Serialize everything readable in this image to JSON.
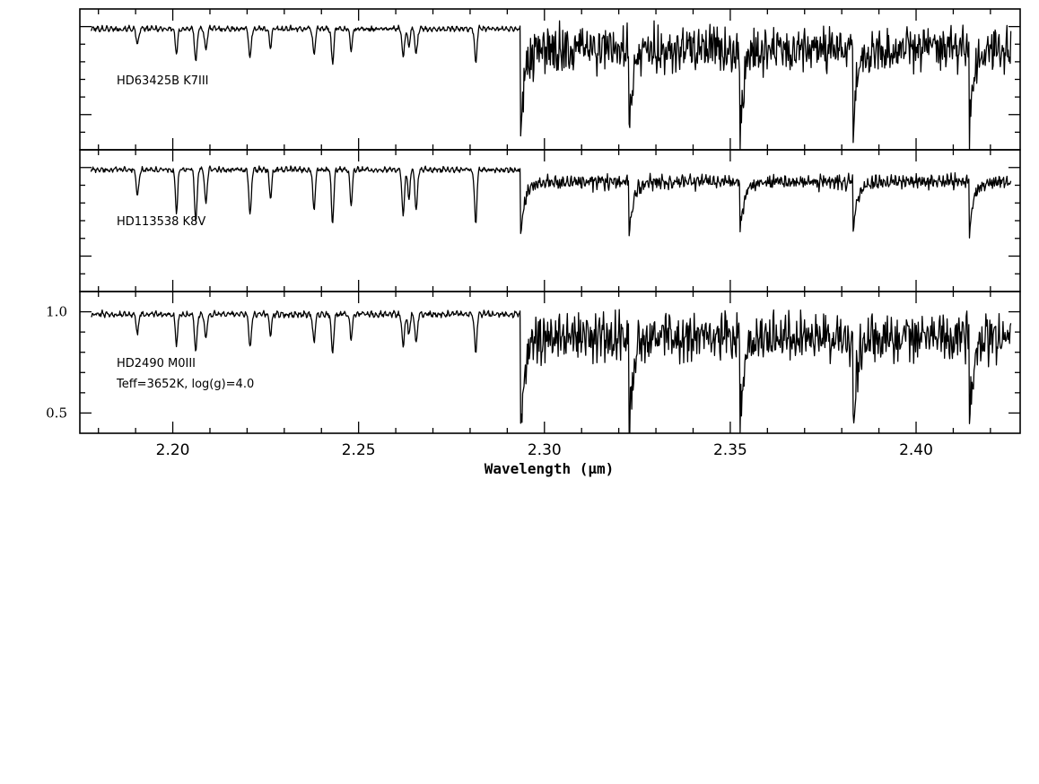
{
  "chart_data": {
    "type": "line",
    "xlabel": "Wavelength (μm)",
    "x_ticks": [
      "2.20",
      "2.25",
      "2.30",
      "2.35",
      "2.40"
    ],
    "xlim": [
      2.175,
      2.428
    ],
    "panels": [
      {
        "labels": [
          "HD63425B  K7III"
        ],
        "ylim": [
          0.3,
          1.1
        ],
        "y_ticks": [],
        "profile": {
          "atomic_scale": 1.0,
          "co_depth": 0.42,
          "co_jitter": 0.55,
          "bandhead_depth": 0.55
        }
      },
      {
        "labels": [
          "HD113538  K8V"
        ],
        "ylim": [
          0.3,
          1.1
        ],
        "y_ticks": [],
        "profile": {
          "atomic_scale": 1.6,
          "co_depth": 0.18,
          "co_jitter": 0.12,
          "bandhead_depth": 0.32
        }
      },
      {
        "labels": [
          "HD2490  M0III",
          "Teff=3652K,  log(g)=4.0"
        ],
        "ylim": [
          0.4,
          1.1
        ],
        "y_ticks": [
          "1.0",
          "0.5"
        ],
        "profile": {
          "atomic_scale": 1.0,
          "co_depth": 0.42,
          "co_jitter": 0.45,
          "bandhead_depth": 0.48
        }
      }
    ],
    "bandheads": [
      2.2935,
      2.3227,
      2.3525,
      2.3829,
      2.4142
    ],
    "atomic_lines": [
      2.1905,
      2.201,
      2.2062,
      2.2089,
      2.2208,
      2.2263,
      2.238,
      2.243,
      2.248,
      2.262,
      2.2635,
      2.2655,
      2.2815
    ]
  }
}
